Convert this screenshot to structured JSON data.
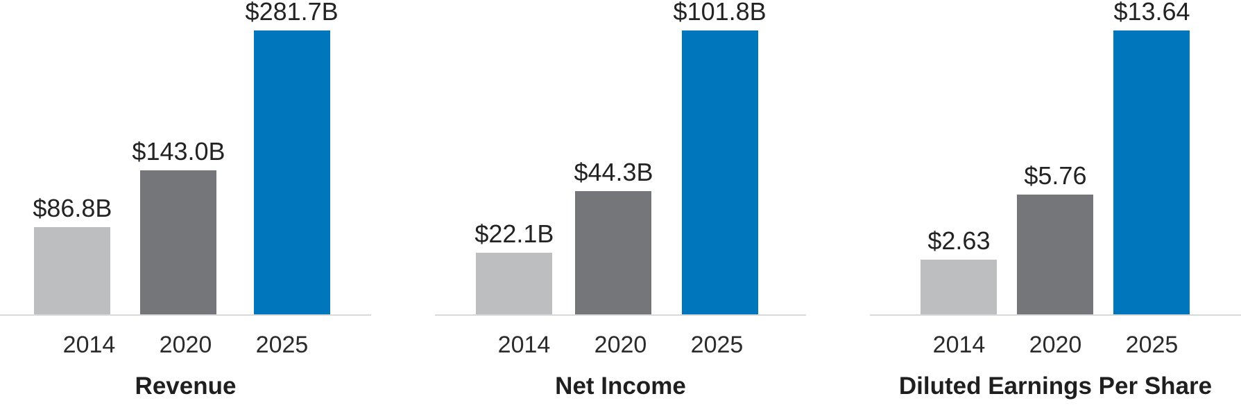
{
  "colors": {
    "bar_2014": "#BCBEC0",
    "bar_2020": "#75767A",
    "bar_2025": "#0077BD",
    "bar_colors": [
      "#BCBEC0",
      "#75767A",
      "#0077BD"
    ],
    "axis_line": "#D9D9D9",
    "text": "#232323"
  },
  "chart_data": [
    {
      "type": "bar",
      "title": "Revenue",
      "categories": [
        "2014",
        "2020",
        "2025"
      ],
      "values": [
        86.8,
        143.0,
        281.7
      ],
      "labels": [
        "$86.8B",
        "$143.0B",
        "$281.7B"
      ],
      "ylim": [
        0,
        281.7
      ],
      "grid": false,
      "legend": "none",
      "xlabel": "",
      "ylabel": ""
    },
    {
      "type": "bar",
      "title": "Net Income",
      "categories": [
        "2014",
        "2020",
        "2025"
      ],
      "values": [
        22.1,
        44.3,
        101.8
      ],
      "labels": [
        "$22.1B",
        "$44.3B",
        "$101.8B"
      ],
      "ylim": [
        0,
        101.8
      ],
      "grid": false,
      "legend": "none",
      "xlabel": "",
      "ylabel": ""
    },
    {
      "type": "bar",
      "title": "Diluted Earnings Per Share",
      "categories": [
        "2014",
        "2020",
        "2025"
      ],
      "values": [
        2.63,
        5.76,
        13.64
      ],
      "labels": [
        "$2.63",
        "$5.76",
        "$13.64"
      ],
      "ylim": [
        0,
        13.64
      ],
      "grid": false,
      "legend": "none",
      "xlabel": "",
      "ylabel": ""
    }
  ]
}
